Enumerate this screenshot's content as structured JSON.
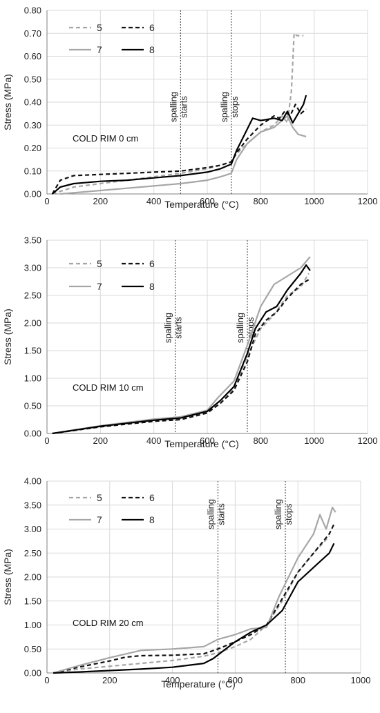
{
  "chart_data": [
    {
      "type": "line",
      "annotation": "COLD RIM 0 cm",
      "xlabel": "Temperature (°C)",
      "ylabel": "Stress (MPa)",
      "xlim": [
        0,
        1200
      ],
      "ylim": [
        0,
        0.8
      ],
      "xticks": [
        0,
        200,
        400,
        600,
        800,
        1000,
        1200
      ],
      "xtick_labels": [
        "0",
        "200",
        "400",
        "600",
        "800",
        "1000",
        "1200"
      ],
      "yticks": [
        0,
        0.1,
        0.2,
        0.3,
        0.4,
        0.5,
        0.6,
        0.7,
        0.8
      ],
      "ytick_labels": [
        "0.00",
        "0.10",
        "0.20",
        "0.30",
        "0.40",
        "0.50",
        "0.60",
        "0.70",
        "0.80"
      ],
      "grid": true,
      "legend_placement": "top-left",
      "vlines": [
        {
          "x": 500,
          "label_line1": "spalling",
          "label_line2": "starts"
        },
        {
          "x": 690,
          "label_line1": "spalling",
          "label_line2": "stops"
        }
      ],
      "series": [
        {
          "name": "5",
          "color": "#a6a6a6",
          "dash": "dash",
          "x": [
            20,
            100,
            200,
            300,
            400,
            500,
            600,
            650,
            690,
            710,
            750,
            800,
            850,
            880,
            900,
            915,
            925,
            935,
            960
          ],
          "y": [
            0,
            0.03,
            0.045,
            0.06,
            0.075,
            0.09,
            0.11,
            0.125,
            0.14,
            0.175,
            0.22,
            0.27,
            0.3,
            0.34,
            0.31,
            0.45,
            0.7,
            0.69,
            0.69
          ]
        },
        {
          "name": "6",
          "color": "#111111",
          "dash": "dash",
          "x": [
            20,
            50,
            100,
            200,
            300,
            400,
            500,
            600,
            650,
            690,
            710,
            750,
            800,
            850,
            870,
            890,
            910,
            930,
            950,
            970
          ],
          "y": [
            0,
            0.06,
            0.08,
            0.085,
            0.09,
            0.095,
            0.1,
            0.115,
            0.125,
            0.14,
            0.18,
            0.24,
            0.3,
            0.34,
            0.33,
            0.36,
            0.34,
            0.39,
            0.35,
            0.37
          ]
        },
        {
          "name": "7",
          "color": "#a6a6a6",
          "dash": "solid",
          "x": [
            50,
            100,
            200,
            300,
            400,
            500,
            600,
            650,
            690,
            710,
            750,
            800,
            850,
            880,
            900,
            920,
            940,
            970
          ],
          "y": [
            0,
            0.005,
            0.015,
            0.025,
            0.035,
            0.045,
            0.06,
            0.075,
            0.09,
            0.15,
            0.22,
            0.27,
            0.29,
            0.32,
            0.34,
            0.29,
            0.26,
            0.25
          ]
        },
        {
          "name": "8",
          "color": "#000000",
          "dash": "solid",
          "x": [
            20,
            50,
            100,
            200,
            300,
            400,
            500,
            600,
            650,
            690,
            710,
            740,
            770,
            800,
            850,
            880,
            900,
            920,
            940,
            960,
            970
          ],
          "y": [
            0,
            0.03,
            0.045,
            0.055,
            0.06,
            0.07,
            0.08,
            0.095,
            0.11,
            0.13,
            0.19,
            0.26,
            0.33,
            0.32,
            0.33,
            0.32,
            0.36,
            0.31,
            0.35,
            0.39,
            0.43
          ]
        }
      ]
    },
    {
      "type": "line",
      "annotation": "COLD RIM 10 cm",
      "xlabel": "Temperature (°C)",
      "ylabel": "Stress (MPa)",
      "xlim": [
        0,
        1200
      ],
      "ylim": [
        0,
        3.5
      ],
      "xticks": [
        0,
        200,
        400,
        600,
        800,
        1000,
        1200
      ],
      "xtick_labels": [
        "0",
        "200",
        "400",
        "600",
        "800",
        "1000",
        "1200"
      ],
      "yticks": [
        0,
        0.5,
        1.0,
        1.5,
        2.0,
        2.5,
        3.0,
        3.5
      ],
      "ytick_labels": [
        "0.00",
        "0.50",
        "1.00",
        "1.50",
        "2.00",
        "2.50",
        "3.00",
        "3.50"
      ],
      "grid": true,
      "legend_placement": "top-left",
      "vlines": [
        {
          "x": 480,
          "label_line1": "spalling",
          "label_line2": "starts"
        },
        {
          "x": 750,
          "label_line1": "spalling",
          "label_line2": "stops"
        }
      ],
      "series": [
        {
          "name": "5",
          "color": "#a6a6a6",
          "dash": "dash",
          "x": [
            20,
            200,
            400,
            500,
            600,
            650,
            700,
            750,
            800,
            850,
            900,
            950,
            980
          ],
          "y": [
            0,
            0.12,
            0.22,
            0.26,
            0.38,
            0.55,
            0.82,
            1.4,
            1.9,
            2.15,
            2.5,
            2.65,
            2.9
          ]
        },
        {
          "name": "6",
          "color": "#111111",
          "dash": "dash",
          "x": [
            20,
            200,
            400,
            500,
            600,
            650,
            700,
            750,
            780,
            820,
            860,
            900,
            950,
            985
          ],
          "y": [
            0,
            0.12,
            0.22,
            0.25,
            0.37,
            0.55,
            0.78,
            1.3,
            1.8,
            2.05,
            2.2,
            2.45,
            2.7,
            2.8
          ]
        },
        {
          "name": "7",
          "color": "#a6a6a6",
          "dash": "solid",
          "x": [
            20,
            200,
            400,
            500,
            600,
            640,
            700,
            750,
            800,
            850,
            900,
            950,
            985
          ],
          "y": [
            0,
            0.14,
            0.26,
            0.3,
            0.42,
            0.65,
            0.95,
            1.6,
            2.3,
            2.7,
            2.85,
            3.0,
            3.2
          ]
        },
        {
          "name": "8",
          "color": "#000000",
          "dash": "solid",
          "x": [
            20,
            200,
            400,
            500,
            600,
            650,
            700,
            750,
            780,
            820,
            860,
            900,
            950,
            970,
            985
          ],
          "y": [
            0,
            0.13,
            0.24,
            0.28,
            0.4,
            0.6,
            0.85,
            1.45,
            1.9,
            2.2,
            2.3,
            2.6,
            2.9,
            3.05,
            2.95
          ]
        }
      ]
    },
    {
      "type": "line",
      "annotation": "COLD RIM 20 cm",
      "xlabel": "Temperature (°C)",
      "ylabel": "Stress (MPa)",
      "xlim": [
        0,
        1000
      ],
      "ylim": [
        0,
        4.0
      ],
      "xticks": [
        0,
        200,
        400,
        600,
        800,
        1000
      ],
      "xtick_labels": [
        "0",
        "200",
        "400",
        "600",
        "800",
        "1000"
      ],
      "yticks": [
        0,
        0.5,
        1.0,
        1.5,
        2.0,
        2.5,
        3.0,
        3.5,
        4.0
      ],
      "ytick_labels": [
        "0.00",
        "0.50",
        "1.00",
        "1.50",
        "2.00",
        "2.50",
        "3.00",
        "3.50",
        "4.00"
      ],
      "grid": true,
      "legend_placement": "top-left",
      "vlines": [
        {
          "x": 545,
          "label_line1": "spalling",
          "label_line2": "starts"
        },
        {
          "x": 760,
          "label_line1": "spalling",
          "label_line2": "stops"
        }
      ],
      "series": [
        {
          "name": "5",
          "color": "#a6a6a6",
          "dash": "dash",
          "x": [
            20,
            100,
            200,
            300,
            400,
            500,
            545,
            600,
            650,
            700,
            750,
            800,
            850,
            900
          ],
          "y": [
            0,
            0.08,
            0.14,
            0.2,
            0.26,
            0.35,
            0.42,
            0.55,
            0.7,
            1.0,
            1.5,
            2.1,
            2.5,
            2.85
          ]
        },
        {
          "name": "6",
          "color": "#111111",
          "dash": "dash",
          "x": [
            20,
            100,
            200,
            250,
            300,
            400,
            500,
            545,
            600,
            650,
            700,
            750,
            800,
            850,
            900,
            915
          ],
          "y": [
            0,
            0.12,
            0.25,
            0.33,
            0.36,
            0.37,
            0.4,
            0.5,
            0.65,
            0.8,
            1.0,
            1.55,
            2.1,
            2.5,
            2.9,
            3.1
          ]
        },
        {
          "name": "7",
          "color": "#a6a6a6",
          "dash": "solid",
          "x": [
            20,
            100,
            200,
            300,
            400,
            500,
            545,
            600,
            650,
            700,
            740,
            800,
            850,
            870,
            890,
            910,
            920
          ],
          "y": [
            0,
            0.15,
            0.32,
            0.47,
            0.5,
            0.55,
            0.7,
            0.8,
            0.92,
            0.95,
            1.6,
            2.4,
            2.9,
            3.3,
            3.0,
            3.45,
            3.35
          ]
        },
        {
          "name": "8",
          "color": "#000000",
          "dash": "solid",
          "x": [
            20,
            100,
            200,
            300,
            400,
            500,
            530,
            600,
            650,
            700,
            750,
            800,
            850,
            900,
            915
          ],
          "y": [
            0,
            0.02,
            0.05,
            0.08,
            0.12,
            0.2,
            0.3,
            0.65,
            0.85,
            1.0,
            1.3,
            1.9,
            2.2,
            2.5,
            2.7
          ]
        }
      ]
    }
  ]
}
